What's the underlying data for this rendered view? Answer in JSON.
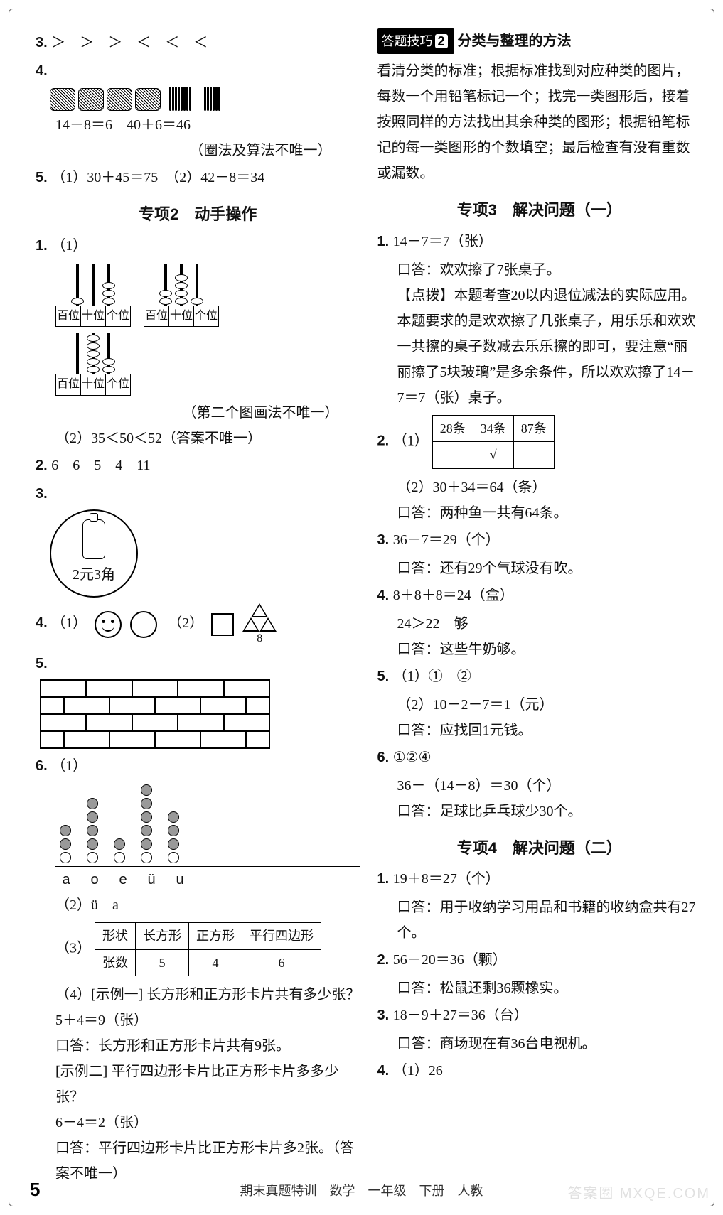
{
  "left": {
    "q3": "＞　＞　＞　＜　＜　＜",
    "q4_line1": "14－8＝6　40＋6＝46",
    "q4_note": "（圈法及算法不唯一）",
    "q5": "（1）30＋45＝75　（2）42－8＝34",
    "section2_title": "专项2　动手操作",
    "s2_q1": "（1）",
    "pv_labels": [
      "百位",
      "十位",
      "个位"
    ],
    "pv_sets": [
      {
        "beads": [
          1,
          0,
          3
        ]
      },
      {
        "beads": [
          2,
          4,
          1
        ]
      },
      {
        "beads": [
          0,
          5,
          2
        ]
      }
    ],
    "s2_q1_note": "（第二个图画法不唯一）",
    "s2_q1_b": "（2）35＜50＜52（答案不唯一）",
    "s2_q2": "6　6　5　4　11",
    "coin_label": "2元3角",
    "s2_q4_a": "（1）",
    "s2_q4_b": "（2）",
    "s2_q4_eight": "8",
    "wall_rows": [
      [
        1,
        1,
        1,
        1,
        1
      ],
      [
        0.5,
        1,
        1,
        1,
        1,
        0.5
      ],
      [
        1,
        1,
        1,
        1,
        1
      ],
      [
        0.5,
        1,
        1,
        1,
        1,
        0.5
      ]
    ],
    "s2_q6_a": "（1）",
    "dot_chart": {
      "labels": [
        "a",
        "o",
        "e",
        "ü",
        "u"
      ],
      "counts": [
        3,
        5,
        2,
        6,
        4
      ],
      "filled_from": 0
    },
    "s2_q6_b": "（2）ü　a",
    "s2_q6_c": "（3）",
    "shape_table": {
      "headers": [
        "形状",
        "长方形",
        "正方形",
        "平行四边形"
      ],
      "row": [
        "张数",
        "5",
        "4",
        "6"
      ]
    },
    "s2_q6_d1": "（4）[示例一] 长方形和正方形卡片共有多少张？",
    "s2_q6_d2": "5＋4＝9（张）",
    "s2_q6_d3": "口答：长方形和正方形卡片共有9张。",
    "s2_q6_d4": "[示例二] 平行四边形卡片比正方形卡片多多少张？",
    "s2_q6_d5": "6－4＝2（张）",
    "s2_q6_d6": "口答：平行四边形卡片比正方形卡片多2张。（答案不唯一）"
  },
  "right": {
    "tip_label_prefix": "答题技巧",
    "tip_num": "2",
    "tip_label_suffix": "分类与整理的方法",
    "tip_body": "看清分类的标准；根据标准找到对应种类的图片，每数一个用铅笔标记一个；找完一类图形后，接着按照同样的方法找出其余种类的图形；根据铅笔标记的每一类图形的个数填空；最后检查有没有重数或漏数。",
    "section3_title": "专项3　解决问题（一）",
    "q1_a": "14－7＝7（张）",
    "q1_b": "口答：欢欢擦了7张桌子。",
    "q1_hint": "【点拨】本题考查20以内退位减法的实际应用。本题要求的是欢欢擦了几张桌子，用乐乐和欢欢一共擦的桌子数减去乐乐擦的即可，要注意“丽丽擦了5块玻璃”是多余条件，所以欢欢擦了14－7＝7（张）桌子。",
    "q2_a": "（1）",
    "q2_table": {
      "headers": [
        "28条",
        "34条",
        "87条"
      ],
      "marks": [
        "",
        "√",
        ""
      ]
    },
    "q2_b": "（2）30＋34＝64（条）",
    "q2_c": "口答：两种鱼一共有64条。",
    "q3_a": "36－7＝29（个）",
    "q3_b": "口答：还有29个气球没有吹。",
    "q4_a": "8＋8＋8＝24（盒）",
    "q4_b": "24＞22　够",
    "q4_c": "口答：这些牛奶够。",
    "q5_a": "（1）①　②",
    "q5_b": "（2）10－2－7＝1（元）",
    "q5_c": "口答：应找回1元钱。",
    "q6_a": "①②④",
    "q6_b": "36－（14－8）＝30（个）",
    "q6_c": "口答：足球比乒乓球少30个。",
    "section4_title": "专项4　解决问题（二）",
    "s4_q1_a": "19＋8＝27（个）",
    "s4_q1_b": "口答：用于收纳学习用品和书籍的收纳盒共有27个。",
    "s4_q2_a": "56－20＝36（颗）",
    "s4_q2_b": "口答：松鼠还剩36颗橡实。",
    "s4_q3_a": "18－9＋27＝36（台）",
    "s4_q3_b": "口答：商场现在有36台电视机。",
    "s4_q4": "（1）26"
  },
  "footer": "期末真题特训　数学　一年级　下册　人教",
  "page_number": "5",
  "watermark": "答案圈  MXQE.COM"
}
